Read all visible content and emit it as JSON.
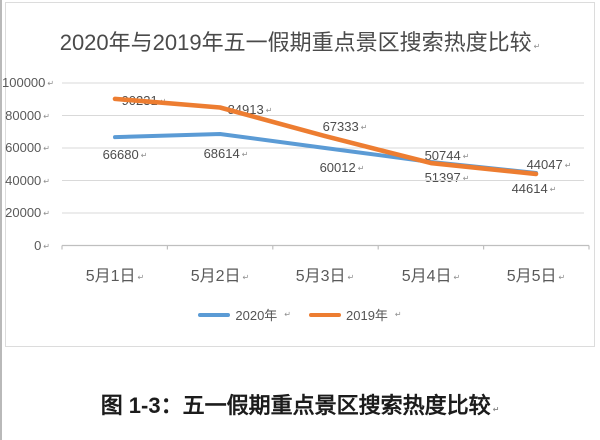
{
  "page": {
    "caption": "图 1-3：五一假期重点景区搜索热度比较",
    "eol_mark": "↵"
  },
  "chart_data": {
    "type": "line",
    "title": "2020年与2019年五一假期重点景区搜索热度比较",
    "categories": [
      "5月1日",
      "5月2日",
      "5月3日",
      "5月4日",
      "5月5日"
    ],
    "series": [
      {
        "name": "2020年",
        "color": "#5B9BD5",
        "values": [
          66680,
          68614,
          60012,
          51397,
          44614
        ]
      },
      {
        "name": "2019年",
        "color": "#ED7D31",
        "values": [
          90231,
          84913,
          67333,
          50744,
          44047
        ]
      }
    ],
    "xlabel": "",
    "ylabel": "",
    "ylim": [
      0,
      100000
    ],
    "yticks": [
      100000,
      80000,
      60000,
      40000,
      20000,
      0
    ],
    "grid": true,
    "legend_position": "bottom",
    "colors": {
      "grid": "#d9d9d9",
      "axis": "#bfbfbf",
      "tick_text": "#595959",
      "title_text": "#4a4a4a",
      "label_text": "#4d4d4d"
    }
  }
}
